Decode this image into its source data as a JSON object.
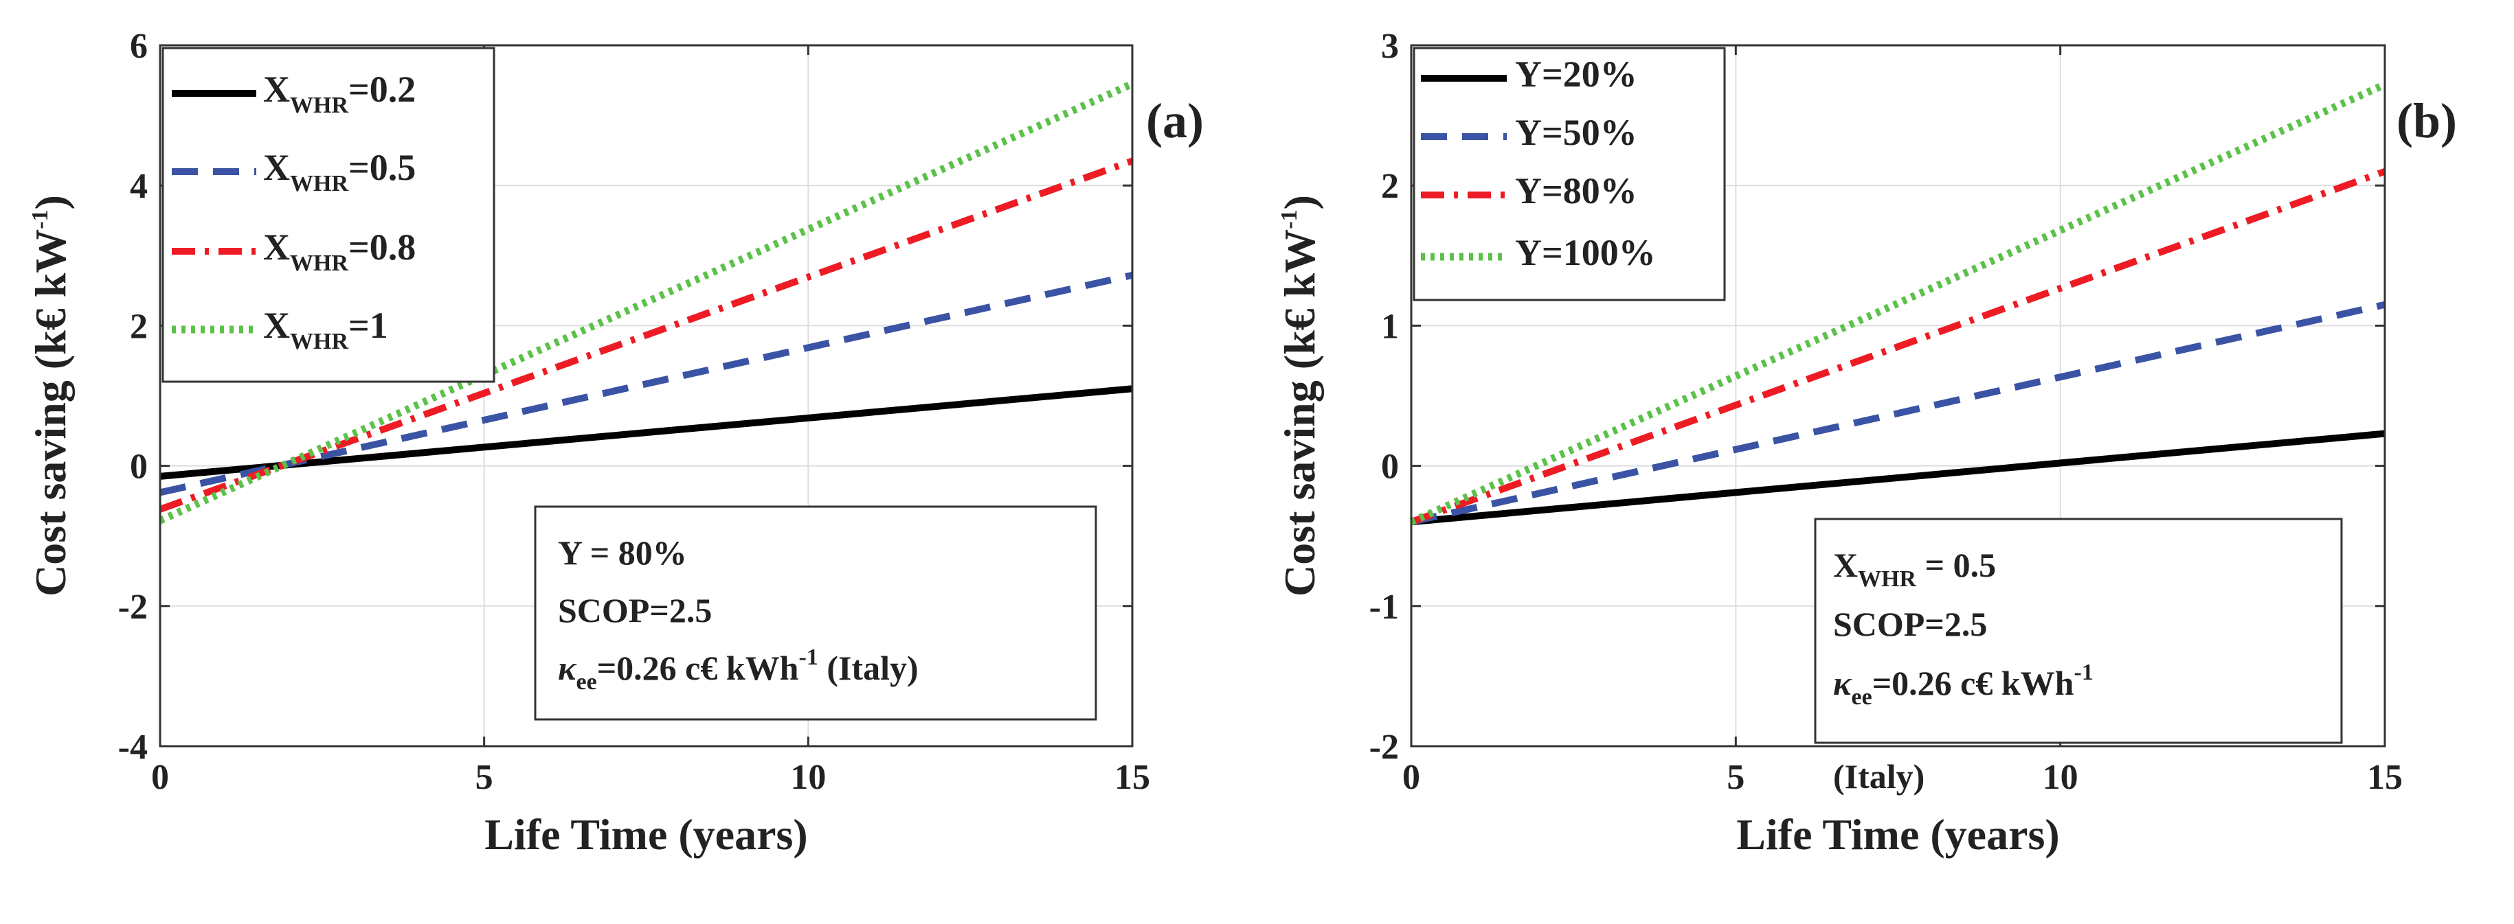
{
  "chart_data": [
    {
      "type": "line",
      "panel_label": "(a)",
      "xlabel": "Life Time (years)",
      "ylabel": "Cost saving (k€ kW",
      "ylabel_sup": "-1",
      "ylabel_close": ")",
      "xlim": [
        0,
        15
      ],
      "ylim": [
        -4,
        6
      ],
      "xticks": [
        0,
        5,
        10,
        15
      ],
      "yticks": [
        -4,
        -2,
        0,
        2,
        4,
        6
      ],
      "xtick_labels": [
        "0",
        "5",
        "10",
        "15"
      ],
      "ytick_labels": [
        "-4",
        "-2",
        "0",
        "2",
        "4",
        "6"
      ],
      "grid": true,
      "legend_position": "top-left",
      "series": [
        {
          "name": "X",
          "sub": "WHR",
          "suffix": "=0.2",
          "color": "#000000",
          "style": "solid",
          "x": [
            0,
            15
          ],
          "y": [
            -0.15,
            1.1
          ]
        },
        {
          "name": "X",
          "sub": "WHR",
          "suffix": "=0.5",
          "color": "#3a53a4",
          "style": "dashed",
          "x": [
            0,
            15
          ],
          "y": [
            -0.38,
            2.72
          ]
        },
        {
          "name": "X",
          "sub": "WHR",
          "suffix": "=0.8",
          "color": "#ed1c24",
          "style": "dashdot",
          "x": [
            0,
            15
          ],
          "y": [
            -0.62,
            4.35
          ]
        },
        {
          "name": "X",
          "sub": "WHR",
          "suffix": "=1",
          "color": "#5cc14a",
          "style": "dotted",
          "x": [
            0,
            15
          ],
          "y": [
            -0.78,
            5.45
          ]
        }
      ],
      "annotation": {
        "line1": "Y = 80%",
        "line2": "SCOP=2.5",
        "line3_symbol": "κ",
        "line3_sub": "ee",
        "line3_text": "=0.26 c€ kWh",
        "line3_sup": "-1",
        "line3_tail": " (Italy)"
      }
    },
    {
      "type": "line",
      "panel_label": "(b)",
      "xlabel": "Life Time (years)",
      "ylabel": "Cost saving (k€ kW",
      "ylabel_sup": "-1",
      "ylabel_close": ")",
      "xlim": [
        0,
        15
      ],
      "ylim": [
        -2,
        3
      ],
      "xticks": [
        0,
        5,
        10,
        15
      ],
      "yticks": [
        -2,
        -1,
        0,
        1,
        2,
        3
      ],
      "xtick_labels": [
        "0",
        "5",
        "10",
        "15"
      ],
      "ytick_labels": [
        "-2",
        "-1",
        "0",
        "1",
        "2",
        "3"
      ],
      "grid": true,
      "legend_position": "top-left",
      "series": [
        {
          "name": "Y=20%",
          "color": "#000000",
          "style": "solid",
          "x": [
            0,
            15
          ],
          "y": [
            -0.4,
            0.23
          ]
        },
        {
          "name": "Y=50%",
          "color": "#3a53a4",
          "style": "dashed",
          "x": [
            0,
            15
          ],
          "y": [
            -0.4,
            1.15
          ]
        },
        {
          "name": "Y=80%",
          "color": "#ed1c24",
          "style": "dashdot",
          "x": [
            0,
            15
          ],
          "y": [
            -0.4,
            2.1
          ]
        },
        {
          "name": "Y=100%",
          "color": "#5cc14a",
          "style": "dotted",
          "x": [
            0,
            15
          ],
          "y": [
            -0.4,
            2.72
          ]
        }
      ],
      "annotation": {
        "line1_name": "X",
        "line1_sub": "WHR",
        "line1_text": " = 0.5",
        "line2": "SCOP=2.5",
        "line3_symbol": "κ",
        "line3_sub": "ee",
        "line3_text": "=0.26 c€ kWh",
        "line3_sup": "-1",
        "line4": "(Italy)"
      }
    }
  ]
}
